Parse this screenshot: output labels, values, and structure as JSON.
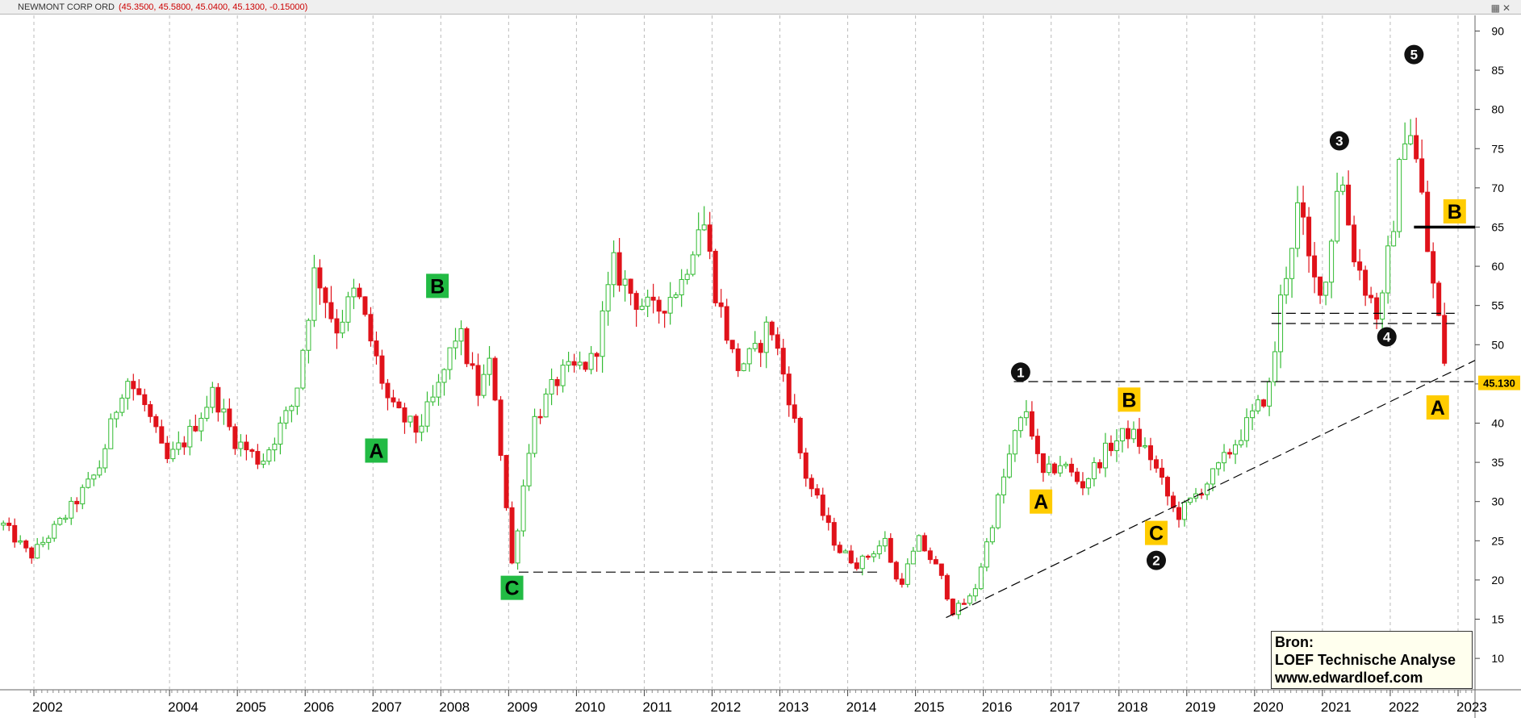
{
  "header": {
    "instrument": "NEWMONT CORP ORD",
    "ohlc": "(45.3500, 45.5800, 45.0400, 45.1300, -0.15000)"
  },
  "source": {
    "line1": "Bron:",
    "line2": "LOEF Technische Analyse",
    "line3": "www.edwardloef.com"
  },
  "chart_data": {
    "type": "candlestick",
    "title": "NEWMONT CORP ORD",
    "interval": "monthly",
    "ylim": [
      6,
      92
    ],
    "y_ticks": [
      10,
      15,
      20,
      25,
      30,
      35,
      40,
      45,
      50,
      55,
      60,
      65,
      70,
      75,
      80,
      85,
      90
    ],
    "x_ticks": [
      "2002",
      "2004",
      "2005",
      "2006",
      "2007",
      "2008",
      "2009",
      "2010",
      "2011",
      "2012",
      "2013",
      "2014",
      "2015",
      "2016",
      "2017",
      "2018",
      "2019",
      "2020",
      "2021",
      "2022",
      "2023"
    ],
    "grid": "vertical dashed",
    "last_price": "45.130",
    "colors": {
      "up": "#33bb33",
      "down": "#e0121a",
      "wave_green": "#22bb44",
      "wave_yellow": "#ffcc00"
    },
    "price_path": [
      [
        2001.6,
        27
      ],
      [
        2002.0,
        23
      ],
      [
        2002.5,
        28
      ],
      [
        2003.0,
        34
      ],
      [
        2003.4,
        46
      ],
      [
        2003.7,
        42
      ],
      [
        2004.0,
        35
      ],
      [
        2004.3,
        38
      ],
      [
        2004.7,
        44
      ],
      [
        2005.0,
        38
      ],
      [
        2005.4,
        35
      ],
      [
        2005.9,
        43
      ],
      [
        2006.2,
        60
      ],
      [
        2006.5,
        52
      ],
      [
        2006.8,
        57
      ],
      [
        2007.3,
        42
      ],
      [
        2007.7,
        39
      ],
      [
        2008.0,
        44
      ],
      [
        2008.3,
        52
      ],
      [
        2008.6,
        44
      ],
      [
        2008.8,
        48
      ],
      [
        2009.1,
        22
      ],
      [
        2009.4,
        40
      ],
      [
        2009.8,
        46
      ],
      [
        2010.3,
        48
      ],
      [
        2010.6,
        60
      ],
      [
        2010.9,
        56
      ],
      [
        2011.2,
        54
      ],
      [
        2011.6,
        58
      ],
      [
        2011.9,
        67
      ],
      [
        2012.1,
        57
      ],
      [
        2012.4,
        47
      ],
      [
        2012.7,
        49
      ],
      [
        2012.9,
        53
      ],
      [
        2013.2,
        43
      ],
      [
        2013.4,
        34
      ],
      [
        2013.7,
        28
      ],
      [
        2013.9,
        24
      ],
      [
        2014.2,
        22
      ],
      [
        2014.6,
        25
      ],
      [
        2014.8,
        19
      ],
      [
        2015.1,
        25
      ],
      [
        2015.4,
        21
      ],
      [
        2015.6,
        16
      ],
      [
        2015.9,
        18
      ],
      [
        2016.2,
        28
      ],
      [
        2016.5,
        38
      ],
      [
        2016.7,
        42
      ],
      [
        2016.9,
        33
      ],
      [
        2017.2,
        35
      ],
      [
        2017.5,
        32
      ],
      [
        2017.9,
        37
      ],
      [
        2018.2,
        39
      ],
      [
        2018.5,
        36
      ],
      [
        2018.9,
        28
      ],
      [
        2019.2,
        31
      ],
      [
        2019.5,
        34
      ],
      [
        2019.8,
        38
      ],
      [
        2020.1,
        42
      ],
      [
        2020.3,
        45
      ],
      [
        2020.4,
        54
      ],
      [
        2020.7,
        68
      ],
      [
        2020.9,
        58
      ],
      [
        2021.1,
        58
      ],
      [
        2021.3,
        73
      ],
      [
        2021.5,
        62
      ],
      [
        2021.7,
        57
      ],
      [
        2021.9,
        53
      ],
      [
        2022.0,
        60
      ],
      [
        2022.1,
        66
      ],
      [
        2022.3,
        80
      ],
      [
        2022.5,
        70
      ],
      [
        2022.6,
        62
      ],
      [
        2022.75,
        54
      ],
      [
        2022.9,
        45.13
      ]
    ],
    "lines": [
      {
        "style": "dashed",
        "from": [
          2009.2,
          21
        ],
        "to": [
          2014.5,
          21
        ]
      },
      {
        "style": "dashed",
        "from": [
          2015.5,
          15.2
        ],
        "to": [
          2023.3,
          48
        ]
      },
      {
        "style": "dashed",
        "from": [
          2016.5,
          45.3
        ],
        "to": [
          2023.3,
          45.3
        ]
      },
      {
        "style": "dashed",
        "from": [
          2020.3,
          54
        ],
        "to": [
          2023.0,
          54
        ]
      },
      {
        "style": "dashed",
        "from": [
          2020.3,
          52.7
        ],
        "to": [
          2023.0,
          52.7
        ]
      },
      {
        "style": "solid",
        "from": [
          2022.4,
          65
        ],
        "to": [
          2023.3,
          65
        ]
      }
    ],
    "wave_labels": [
      {
        "text": "A",
        "x": 2007.1,
        "y": 36.5,
        "style": "green"
      },
      {
        "text": "B",
        "x": 2008.0,
        "y": 57.5,
        "style": "green"
      },
      {
        "text": "C",
        "x": 2009.1,
        "y": 19.0,
        "style": "green"
      },
      {
        "text": "A",
        "x": 2016.9,
        "y": 30.0,
        "style": "yellow"
      },
      {
        "text": "B",
        "x": 2018.2,
        "y": 43.0,
        "style": "yellow"
      },
      {
        "text": "C",
        "x": 2018.6,
        "y": 26.0,
        "style": "yellow"
      },
      {
        "text": "A",
        "x": 2022.75,
        "y": 42.0,
        "style": "yellow"
      },
      {
        "text": "B",
        "x": 2023.0,
        "y": 67.0,
        "style": "yellow"
      },
      {
        "text": "1",
        "x": 2016.6,
        "y": 46.5,
        "style": "circle"
      },
      {
        "text": "2",
        "x": 2018.6,
        "y": 22.5,
        "style": "circle"
      },
      {
        "text": "3",
        "x": 2021.3,
        "y": 76.0,
        "style": "circle"
      },
      {
        "text": "4",
        "x": 2022.0,
        "y": 51.0,
        "style": "circle"
      },
      {
        "text": "5",
        "x": 2022.4,
        "y": 87.0,
        "style": "circle"
      }
    ]
  }
}
